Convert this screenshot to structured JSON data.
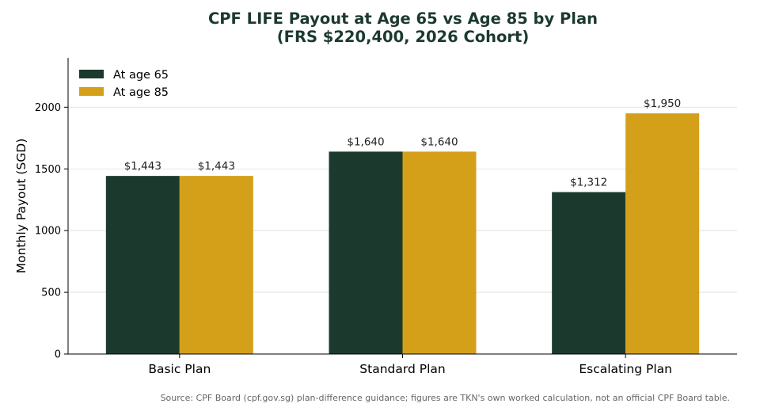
{
  "chart_data": {
    "type": "bar",
    "title": "CPF LIFE Payout at Age 65 vs Age 85 by Plan",
    "subtitle": "(FRS $220,400, 2026 Cohort)",
    "categories": [
      "Basic Plan",
      "Standard Plan",
      "Escalating Plan"
    ],
    "series": [
      {
        "name": "At age 65",
        "values": [
          1443,
          1640,
          1312
        ],
        "labels": [
          "$1,443",
          "$1,640",
          "$1,312"
        ],
        "color": "#1b3a2d"
      },
      {
        "name": "At age 85",
        "values": [
          1443,
          1640,
          1950
        ],
        "labels": [
          "$1,443",
          "$1,640",
          "$1,950"
        ],
        "color": "#d4a01a"
      }
    ],
    "xlabel": "",
    "ylabel": "Monthly Payout (SGD)",
    "ylim": [
      0,
      2400
    ],
    "yticks": [
      0,
      500,
      1000,
      1500,
      2000
    ],
    "grid": true,
    "legend": "top-left"
  },
  "source": "Source: CPF Board (cpf.gov.sg) plan-difference guidance; figures are TKN's own worked calculation, not an official CPF Board table."
}
